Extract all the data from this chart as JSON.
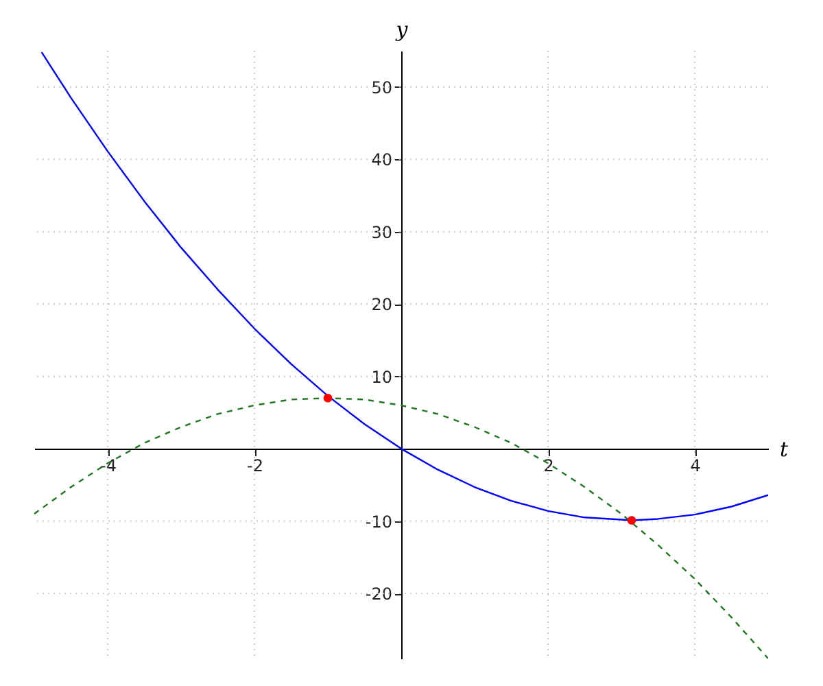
{
  "chart_data": {
    "type": "line",
    "xlabel": "t",
    "ylabel": "y",
    "xlim": [
      -5,
      5
    ],
    "ylim": [
      -29,
      55
    ],
    "xticks": [
      -4,
      -2,
      2,
      4
    ],
    "yticks": [
      -20,
      -10,
      10,
      20,
      30,
      40,
      50
    ],
    "grid": true,
    "series": [
      {
        "color": "#0000ff",
        "line_style": "solid",
        "x": [
          -4.9,
          -4.5,
          -4,
          -3.5,
          -3,
          -2.5,
          -2,
          -1.5,
          -1,
          -0.5,
          0,
          0.5,
          1,
          1.5,
          2,
          2.5,
          3,
          3.14,
          3.5,
          4,
          4.5,
          5
        ],
        "values": [
          54.8,
          48.5,
          41.1,
          34.2,
          27.8,
          22.0,
          16.6,
          11.7,
          7.3,
          3.4,
          0,
          -2.9,
          -5.3,
          -7.2,
          -8.6,
          -9.5,
          -9.8,
          -9.9,
          -9.7,
          -9.1,
          -8.0,
          -6.4
        ]
      },
      {
        "color": "#227722",
        "line_style": "dashed",
        "x": [
          -5,
          -4.5,
          -4,
          -3.5,
          -3,
          -2.5,
          -2,
          -1.5,
          -1,
          -0.5,
          0,
          0.5,
          1,
          1.5,
          2,
          2.5,
          3,
          3.5,
          4,
          4.5,
          5
        ],
        "values": [
          -9,
          -5.3,
          -2,
          0.8,
          3,
          4.8,
          6,
          6.8,
          7,
          6.8,
          6,
          4.8,
          3,
          0.8,
          -2,
          -5.3,
          -9,
          -13.3,
          -18,
          -23.3,
          -29
        ]
      },
      {
        "type": "scatter",
        "color": "#ff0000",
        "marker": "circle",
        "x": [
          -1,
          3.14
        ],
        "values": [
          7,
          -9.9
        ]
      }
    ]
  }
}
